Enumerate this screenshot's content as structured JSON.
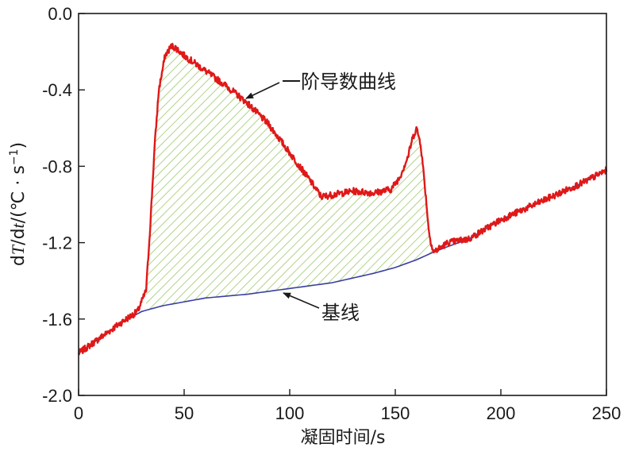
{
  "chart_data": {
    "type": "line",
    "title": "",
    "xlabel": "凝固时间/s",
    "ylabel": "dT/dt/(℃ · s⁻¹)",
    "ylabel_parts": {
      "a": "d",
      "b": "T",
      "c": "/d",
      "d": "t",
      "e": "/(℃ · s",
      "f": "−1",
      "g": ")"
    },
    "xlim": [
      0,
      250
    ],
    "ylim": [
      -2.0,
      0.0
    ],
    "xticks": [
      0,
      50,
      100,
      150,
      200,
      250
    ],
    "xtick_labels": [
      "0",
      "50",
      "100",
      "150",
      "200",
      "250"
    ],
    "yticks": [
      0.0,
      -0.4,
      -0.8,
      -1.2,
      -1.6,
      -2.0
    ],
    "ytick_labels": [
      "0.0",
      "-0.4",
      "-0.8",
      "-1.2",
      "-1.6",
      "-2.0"
    ],
    "grid": false,
    "colors": {
      "derivative": "#e01818",
      "baseline": "#3a3fa0",
      "fill_hatch": "#9cc96b"
    },
    "series": [
      {
        "name": "一阶导数曲线",
        "x": [
          0,
          10,
          20,
          28,
          32,
          34,
          36,
          38,
          41,
          44,
          46,
          50,
          60,
          70,
          80,
          90,
          100,
          110,
          115,
          120,
          130,
          140,
          148,
          152,
          156,
          158,
          160,
          162,
          164,
          166,
          168,
          175,
          185,
          200,
          220,
          240,
          250
        ],
        "y": [
          -1.78,
          -1.7,
          -1.62,
          -1.56,
          -1.45,
          -1.1,
          -0.7,
          -0.4,
          -0.22,
          -0.17,
          -0.18,
          -0.22,
          -0.3,
          -0.38,
          -0.47,
          -0.58,
          -0.73,
          -0.88,
          -0.96,
          -0.95,
          -0.93,
          -0.94,
          -0.92,
          -0.86,
          -0.75,
          -0.66,
          -0.6,
          -0.68,
          -0.9,
          -1.15,
          -1.25,
          -1.2,
          -1.18,
          -1.08,
          -0.98,
          -0.88,
          -0.82
        ]
      },
      {
        "name": "基线",
        "x": [
          0,
          10,
          20,
          30,
          40,
          50,
          60,
          80,
          100,
          120,
          140,
          150,
          160,
          168,
          175,
          185,
          200,
          220,
          240,
          250
        ],
        "y": [
          -1.78,
          -1.7,
          -1.62,
          -1.56,
          -1.53,
          -1.51,
          -1.49,
          -1.47,
          -1.44,
          -1.41,
          -1.36,
          -1.33,
          -1.29,
          -1.25,
          -1.22,
          -1.18,
          -1.08,
          -0.98,
          -0.88,
          -0.82
        ]
      }
    ],
    "shaded_region": {
      "between": [
        "一阶导数曲线",
        "基线"
      ],
      "x_range": [
        32,
        168
      ],
      "pattern": "diagonal-hatch"
    },
    "annotations": [
      {
        "text": "一阶导数曲线",
        "points_to": "一阶导数曲线",
        "at_x": 80
      },
      {
        "text": "基线",
        "points_to": "基线",
        "at_x": 100
      }
    ]
  }
}
